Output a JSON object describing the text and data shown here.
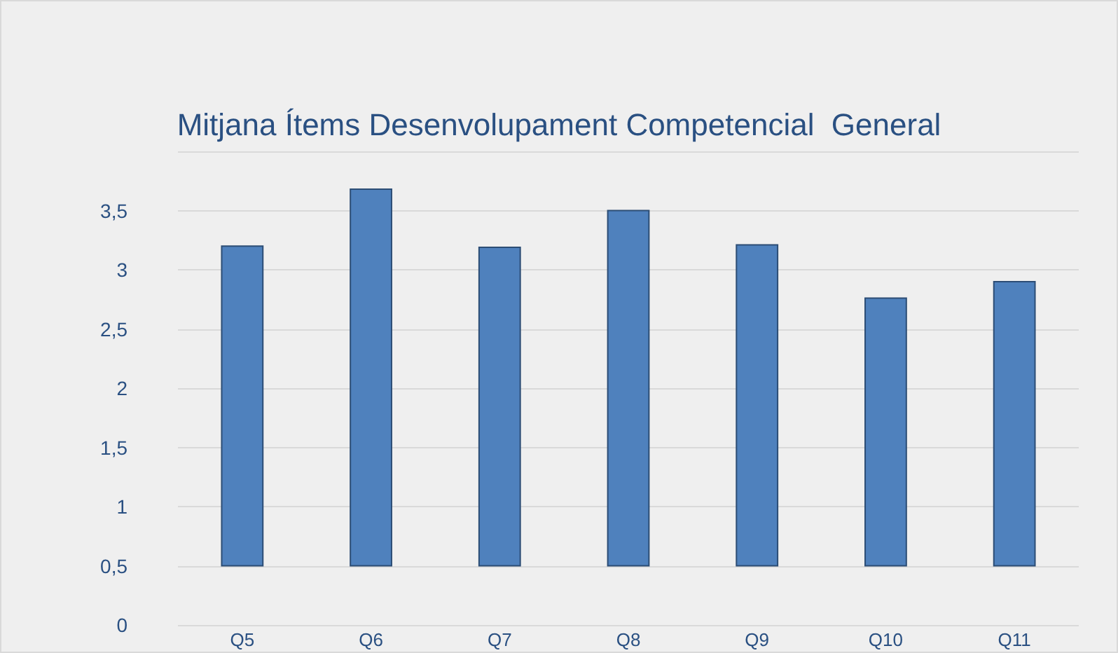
{
  "chart_data": {
    "type": "bar",
    "title": "Mitjana Ítems Desenvolupament Competencial  General",
    "categories": [
      "Q5",
      "Q6",
      "Q7",
      "Q8",
      "Q9",
      "Q10",
      "Q11"
    ],
    "values": [
      2.7,
      3.18,
      2.69,
      3.0,
      2.71,
      2.26,
      2.4
    ],
    "base": [
      0.5,
      0.5,
      0.5,
      0.5,
      0.5,
      0.5,
      0.5
    ],
    "color": "#4f81bd",
    "ylim": [
      0,
      4
    ],
    "yticks": [
      0,
      {
        "value": 0.5,
        "label": "0,5"
      },
      1,
      {
        "value": 1.5,
        "label": "1,5"
      },
      2,
      {
        "value": 2.5,
        "label": "2,5"
      },
      3,
      {
        "value": 3.5,
        "label": "3,5"
      },
      {
        "value": 4,
        "label": null
      }
    ],
    "grid": "y"
  }
}
